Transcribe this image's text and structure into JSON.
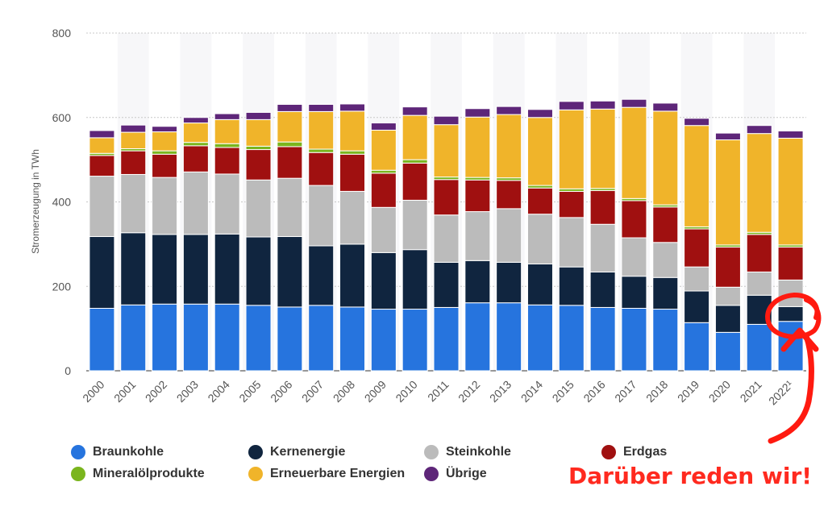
{
  "chart_data": {
    "type": "bar",
    "stacked": true,
    "ylabel": "Stromerzeugung in TWh",
    "xlabel": "",
    "ylim": [
      0,
      800
    ],
    "yticks": [
      0,
      200,
      400,
      600,
      800
    ],
    "grid": true,
    "categories": [
      "2000",
      "2001",
      "2002",
      "2003",
      "2004",
      "2005",
      "2006",
      "2007",
      "2008",
      "2009",
      "2010",
      "2011",
      "2012",
      "2013",
      "2014",
      "2015",
      "2016",
      "2017",
      "2018",
      "2019",
      "2020",
      "2021",
      "2022¹"
    ],
    "series": [
      {
        "name": "Braunkohle",
        "color": "#2674de",
        "values": [
          148,
          156,
          158,
          158,
          158,
          155,
          151,
          155,
          151,
          146,
          146,
          150,
          161,
          161,
          156,
          155,
          150,
          148,
          146,
          114,
          91,
          110,
          117
        ]
      },
      {
        "name": "Kernenergie",
        "color": "#10253f",
        "values": [
          170,
          171,
          165,
          165,
          166,
          162,
          167,
          141,
          149,
          134,
          141,
          107,
          100,
          96,
          97,
          91,
          84,
          76,
          75,
          75,
          64,
          69,
          35
        ]
      },
      {
        "name": "Steinkohle",
        "color": "#bbbbbb",
        "values": [
          143,
          138,
          135,
          148,
          142,
          135,
          138,
          143,
          125,
          107,
          117,
          112,
          116,
          127,
          118,
          117,
          113,
          91,
          83,
          57,
          43,
          55,
          63
        ]
      },
      {
        "name": "Erdgas",
        "color": "#a01010",
        "values": [
          49,
          56,
          55,
          62,
          63,
          72,
          75,
          78,
          88,
          81,
          88,
          84,
          75,
          67,
          62,
          62,
          80,
          88,
          84,
          90,
          95,
          89,
          78
        ]
      },
      {
        "name": "Mineralölprodukte",
        "color": "#7ab51d",
        "values": [
          5,
          5,
          8,
          8,
          9,
          8,
          11,
          8,
          8,
          7,
          8,
          6,
          6,
          6,
          6,
          6,
          5,
          5,
          5,
          5,
          5,
          5,
          5
        ]
      },
      {
        "name": "Erneuerbare Energien",
        "color": "#f0b42a",
        "values": [
          37,
          39,
          45,
          46,
          57,
          63,
          72,
          89,
          94,
          95,
          105,
          124,
          143,
          150,
          161,
          187,
          188,
          216,
          222,
          240,
          249,
          234,
          253
        ]
      },
      {
        "name": "Übrige",
        "color": "#5e2679",
        "values": [
          17,
          17,
          13,
          13,
          14,
          17,
          17,
          17,
          17,
          17,
          20,
          20,
          20,
          19,
          19,
          20,
          19,
          19,
          19,
          17,
          16,
          19,
          17
        ]
      }
    ]
  },
  "annotation": {
    "text": "Darüber reden wir!",
    "color": "#ff2a1f"
  }
}
